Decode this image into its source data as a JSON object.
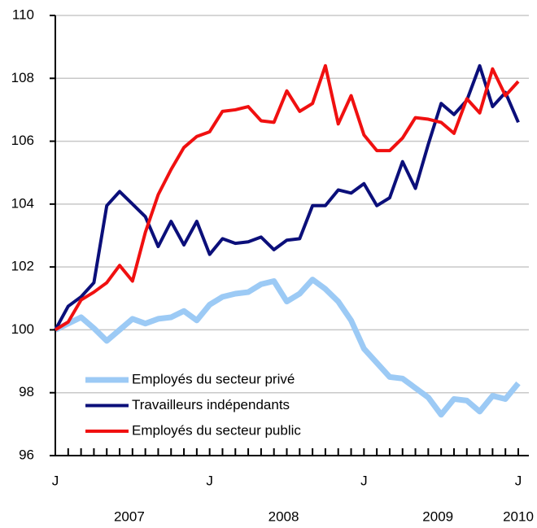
{
  "chart_data": {
    "type": "line",
    "categories": [
      "J",
      null,
      null,
      null,
      null,
      null,
      null,
      null,
      null,
      null,
      null,
      null,
      "J",
      null,
      null,
      null,
      null,
      null,
      null,
      null,
      null,
      null,
      null,
      null,
      "J",
      null,
      null,
      null,
      null,
      null,
      null,
      null,
      null,
      null,
      null,
      null,
      "J"
    ],
    "year_labels": [
      "2007",
      "2008",
      "2009",
      "2010"
    ],
    "ylim": [
      96,
      110
    ],
    "yticks": [
      96,
      98,
      100,
      102,
      104,
      106,
      108,
      110
    ],
    "grid": true,
    "legend": "lower left",
    "series": [
      {
        "name": "Employés du secteur privé",
        "color": "#9ccaf5",
        "values": [
          100,
          100.2,
          100.4,
          100.05,
          99.65,
          100.0,
          100.35,
          100.2,
          100.35,
          100.4,
          100.6,
          100.3,
          100.8,
          101.05,
          101.15,
          101.2,
          101.45,
          101.55,
          100.9,
          101.15,
          101.6,
          101.3,
          100.9,
          100.3,
          99.4,
          98.95,
          98.5,
          98.45,
          98.15,
          97.85,
          97.3,
          97.8,
          97.75,
          97.4,
          97.9,
          97.8,
          98.3
        ]
      },
      {
        "name": "Travailleurs indépendants",
        "color": "#0b0f7a",
        "values": [
          100,
          100.75,
          101.05,
          101.5,
          103.95,
          104.4,
          104.0,
          103.6,
          102.65,
          103.45,
          102.7,
          103.45,
          102.4,
          102.9,
          102.75,
          102.8,
          102.95,
          102.55,
          102.85,
          102.9,
          103.95,
          103.95,
          104.45,
          104.35,
          104.65,
          103.95,
          104.2,
          105.35,
          104.5,
          105.9,
          107.2,
          106.85,
          107.3,
          108.4,
          107.1,
          107.55,
          106.6
        ]
      },
      {
        "name": "Employés du secteur public",
        "color": "#f01010",
        "values": [
          100,
          100.25,
          100.95,
          101.2,
          101.5,
          102.05,
          101.55,
          103.1,
          104.3,
          105.1,
          105.8,
          106.15,
          106.3,
          106.95,
          107.0,
          107.1,
          106.65,
          106.6,
          107.6,
          106.95,
          107.2,
          108.4,
          106.55,
          107.45,
          106.2,
          105.7,
          105.7,
          106.1,
          106.75,
          106.7,
          106.6,
          106.25,
          107.35,
          106.9,
          108.3,
          107.45,
          107.9
        ]
      }
    ]
  }
}
